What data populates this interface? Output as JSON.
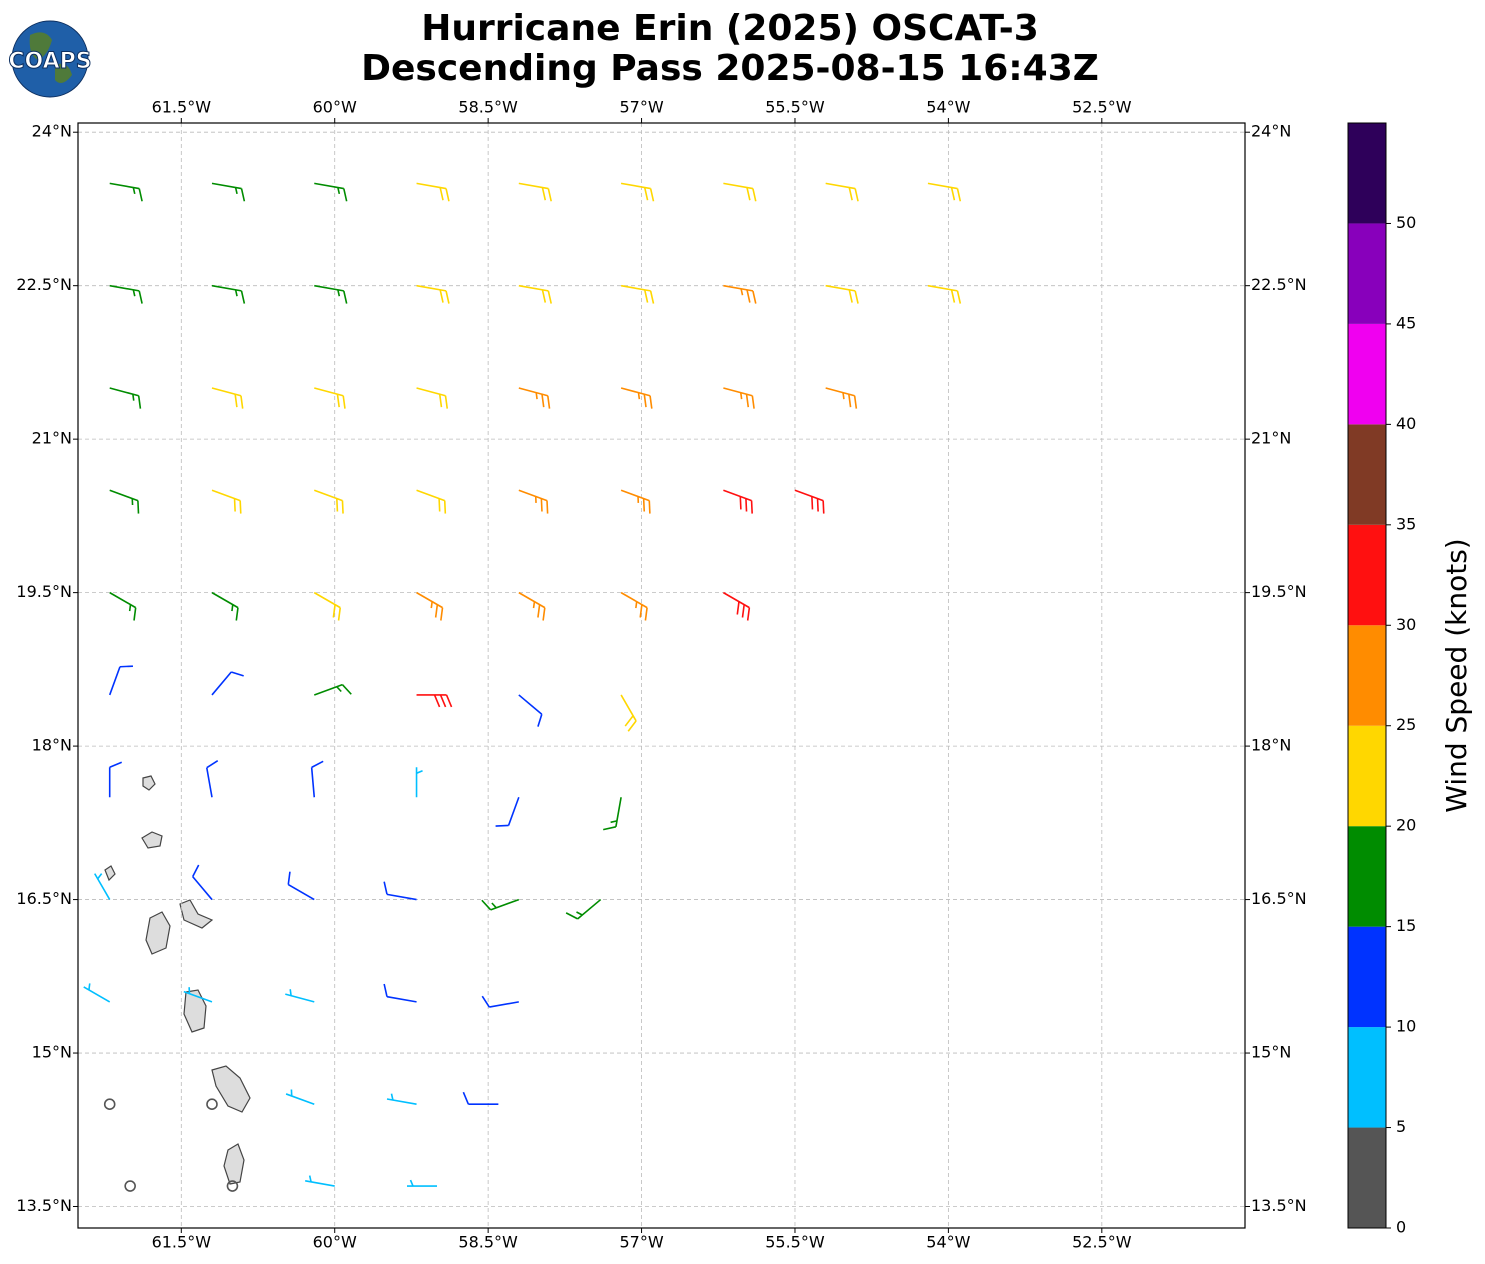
{
  "logo_text": "COAPS",
  "chart_data": {
    "type": "barbs",
    "title": "Hurricane Erin (2025) OSCAT-3",
    "subtitle": "Descending Pass 2025-08-15 16:43Z",
    "xlim": [
      -62.51,
      -51.1
    ],
    "ylim": [
      13.29,
      24.09
    ],
    "xticks": [
      {
        "value": -61.5,
        "label": "61.5°W"
      },
      {
        "value": -60,
        "label": "60°W"
      },
      {
        "value": -58.5,
        "label": "58.5°W"
      },
      {
        "value": -57,
        "label": "57°W"
      },
      {
        "value": -55.5,
        "label": "55.5°W"
      },
      {
        "value": -54,
        "label": "54°W"
      },
      {
        "value": -52.5,
        "label": "52.5°W"
      }
    ],
    "yticks": [
      {
        "value": 24,
        "label": "24°N"
      },
      {
        "value": 22.5,
        "label": "22.5°N"
      },
      {
        "value": 21,
        "label": "21°N"
      },
      {
        "value": 19.5,
        "label": "19.5°N"
      },
      {
        "value": 18,
        "label": "18°N"
      },
      {
        "value": 16.5,
        "label": "16.5°N"
      },
      {
        "value": 15,
        "label": "15°N"
      },
      {
        "value": 13.5,
        "label": "13.5°N"
      }
    ],
    "grid": true,
    "colorbar": {
      "label": "Wind Speed (knots)",
      "lim": [
        0,
        55
      ],
      "ticks": [
        0,
        5,
        10,
        15,
        20,
        25,
        30,
        35,
        40,
        45,
        50
      ],
      "colors": [
        "#555555",
        "#00bfff",
        "#0033ff",
        "#008c00",
        "#ffd700",
        "#ff8c00",
        "#ff1010",
        "#803a25",
        "#f000f0",
        "#8800bb",
        "#2e005a"
      ]
    },
    "barbs": [
      {
        "lon": -62.2,
        "lat": 23.5,
        "speed": 15,
        "dir": 100
      },
      {
        "lon": -61.2,
        "lat": 23.5,
        "speed": 17,
        "dir": 100
      },
      {
        "lon": -60.2,
        "lat": 23.5,
        "speed": 18,
        "dir": 100
      },
      {
        "lon": -59.2,
        "lat": 23.5,
        "speed": 20,
        "dir": 100
      },
      {
        "lon": -58.2,
        "lat": 23.5,
        "speed": 22,
        "dir": 100
      },
      {
        "lon": -57.2,
        "lat": 23.5,
        "speed": 22,
        "dir": 100
      },
      {
        "lon": -56.2,
        "lat": 23.5,
        "speed": 23,
        "dir": 100
      },
      {
        "lon": -55.2,
        "lat": 23.5,
        "speed": 23,
        "dir": 100
      },
      {
        "lon": -54.2,
        "lat": 23.5,
        "speed": 23,
        "dir": 100
      },
      {
        "lon": -62.2,
        "lat": 22.5,
        "speed": 17,
        "dir": 100
      },
      {
        "lon": -61.2,
        "lat": 22.5,
        "speed": 18,
        "dir": 100
      },
      {
        "lon": -60.2,
        "lat": 22.5,
        "speed": 19,
        "dir": 100
      },
      {
        "lon": -59.2,
        "lat": 22.5,
        "speed": 21,
        "dir": 100
      },
      {
        "lon": -58.2,
        "lat": 22.5,
        "speed": 22,
        "dir": 100
      },
      {
        "lon": -57.2,
        "lat": 22.5,
        "speed": 24,
        "dir": 100
      },
      {
        "lon": -56.2,
        "lat": 22.5,
        "speed": 26,
        "dir": 100
      },
      {
        "lon": -55.2,
        "lat": 22.5,
        "speed": 24,
        "dir": 100
      },
      {
        "lon": -54.2,
        "lat": 22.5,
        "speed": 23,
        "dir": 100
      },
      {
        "lon": -62.2,
        "lat": 21.5,
        "speed": 18,
        "dir": 105
      },
      {
        "lon": -61.2,
        "lat": 21.5,
        "speed": 20,
        "dir": 105
      },
      {
        "lon": -60.2,
        "lat": 21.5,
        "speed": 22,
        "dir": 105
      },
      {
        "lon": -59.2,
        "lat": 21.5,
        "speed": 24,
        "dir": 105
      },
      {
        "lon": -58.2,
        "lat": 21.5,
        "speed": 26,
        "dir": 105
      },
      {
        "lon": -57.2,
        "lat": 21.5,
        "speed": 27,
        "dir": 105
      },
      {
        "lon": -56.2,
        "lat": 21.5,
        "speed": 28,
        "dir": 105
      },
      {
        "lon": -55.2,
        "lat": 21.5,
        "speed": 27,
        "dir": 105
      },
      {
        "lon": -62.2,
        "lat": 20.5,
        "speed": 16,
        "dir": 110
      },
      {
        "lon": -61.2,
        "lat": 20.5,
        "speed": 20,
        "dir": 110
      },
      {
        "lon": -60.2,
        "lat": 20.5,
        "speed": 22,
        "dir": 110
      },
      {
        "lon": -59.2,
        "lat": 20.5,
        "speed": 24,
        "dir": 110
      },
      {
        "lon": -58.2,
        "lat": 20.5,
        "speed": 27,
        "dir": 110
      },
      {
        "lon": -57.2,
        "lat": 20.5,
        "speed": 28,
        "dir": 110
      },
      {
        "lon": -56.2,
        "lat": 20.5,
        "speed": 30,
        "dir": 110
      },
      {
        "lon": -55.5,
        "lat": 20.5,
        "speed": 31,
        "dir": 110
      },
      {
        "lon": -62.2,
        "lat": 19.5,
        "speed": 15,
        "dir": 120
      },
      {
        "lon": -61.2,
        "lat": 19.5,
        "speed": 17,
        "dir": 120
      },
      {
        "lon": -60.2,
        "lat": 19.5,
        "speed": 22,
        "dir": 120
      },
      {
        "lon": -59.2,
        "lat": 19.5,
        "speed": 28,
        "dir": 120
      },
      {
        "lon": -58.2,
        "lat": 19.5,
        "speed": 26,
        "dir": 120
      },
      {
        "lon": -57.2,
        "lat": 19.5,
        "speed": 29,
        "dir": 120
      },
      {
        "lon": -56.2,
        "lat": 19.5,
        "speed": 32,
        "dir": 120
      },
      {
        "lon": -62.2,
        "lat": 18.5,
        "speed": 12,
        "dir": 20
      },
      {
        "lon": -61.2,
        "lat": 18.5,
        "speed": 13,
        "dir": 40
      },
      {
        "lon": -60.2,
        "lat": 18.5,
        "speed": 17,
        "dir": 70
      },
      {
        "lon": -59.2,
        "lat": 18.5,
        "speed": 32,
        "dir": 90
      },
      {
        "lon": -58.2,
        "lat": 18.5,
        "speed": 14,
        "dir": 130
      },
      {
        "lon": -57.2,
        "lat": 18.5,
        "speed": 22,
        "dir": 150
      },
      {
        "lon": -62.2,
        "lat": 17.5,
        "speed": 12,
        "dir": 0
      },
      {
        "lon": -61.2,
        "lat": 17.5,
        "speed": 13,
        "dir": 350
      },
      {
        "lon": -60.2,
        "lat": 17.5,
        "speed": 12,
        "dir": 355
      },
      {
        "lon": -59.2,
        "lat": 17.5,
        "speed": 8,
        "dir": 0
      },
      {
        "lon": -58.2,
        "lat": 17.5,
        "speed": 13,
        "dir": 200
      },
      {
        "lon": -57.2,
        "lat": 17.5,
        "speed": 17,
        "dir": 190
      },
      {
        "lon": -62.2,
        "lat": 16.5,
        "speed": 8,
        "dir": 330
      },
      {
        "lon": -61.2,
        "lat": 16.5,
        "speed": 10,
        "dir": 320
      },
      {
        "lon": -60.2,
        "lat": 16.5,
        "speed": 12,
        "dir": 300
      },
      {
        "lon": -59.2,
        "lat": 16.5,
        "speed": 13,
        "dir": 280
      },
      {
        "lon": -58.2,
        "lat": 16.5,
        "speed": 16,
        "dir": 250
      },
      {
        "lon": -57.4,
        "lat": 16.5,
        "speed": 18,
        "dir": 230
      },
      {
        "lon": -62.2,
        "lat": 15.5,
        "speed": 6,
        "dir": 300
      },
      {
        "lon": -61.2,
        "lat": 15.5,
        "speed": 8,
        "dir": 290
      },
      {
        "lon": -60.2,
        "lat": 15.5,
        "speed": 9,
        "dir": 285
      },
      {
        "lon": -59.2,
        "lat": 15.5,
        "speed": 11,
        "dir": 280
      },
      {
        "lon": -58.2,
        "lat": 15.5,
        "speed": 13,
        "dir": 260
      },
      {
        "lon": -62.2,
        "lat": 14.5,
        "speed": 3,
        "dir": 310
      },
      {
        "lon": -61.2,
        "lat": 14.5,
        "speed": 4,
        "dir": 300
      },
      {
        "lon": -60.2,
        "lat": 14.5,
        "speed": 6,
        "dir": 290
      },
      {
        "lon": -59.2,
        "lat": 14.5,
        "speed": 8,
        "dir": 280
      },
      {
        "lon": -58.4,
        "lat": 14.5,
        "speed": 11,
        "dir": 270
      },
      {
        "lon": -62.0,
        "lat": 13.7,
        "speed": 2,
        "dir": 300
      },
      {
        "lon": -61.0,
        "lat": 13.7,
        "speed": 3,
        "dir": 290
      },
      {
        "lon": -60.0,
        "lat": 13.7,
        "speed": 6,
        "dir": 280
      },
      {
        "lon": -59.0,
        "lat": 13.7,
        "speed": 8,
        "dir": 270
      }
    ]
  }
}
